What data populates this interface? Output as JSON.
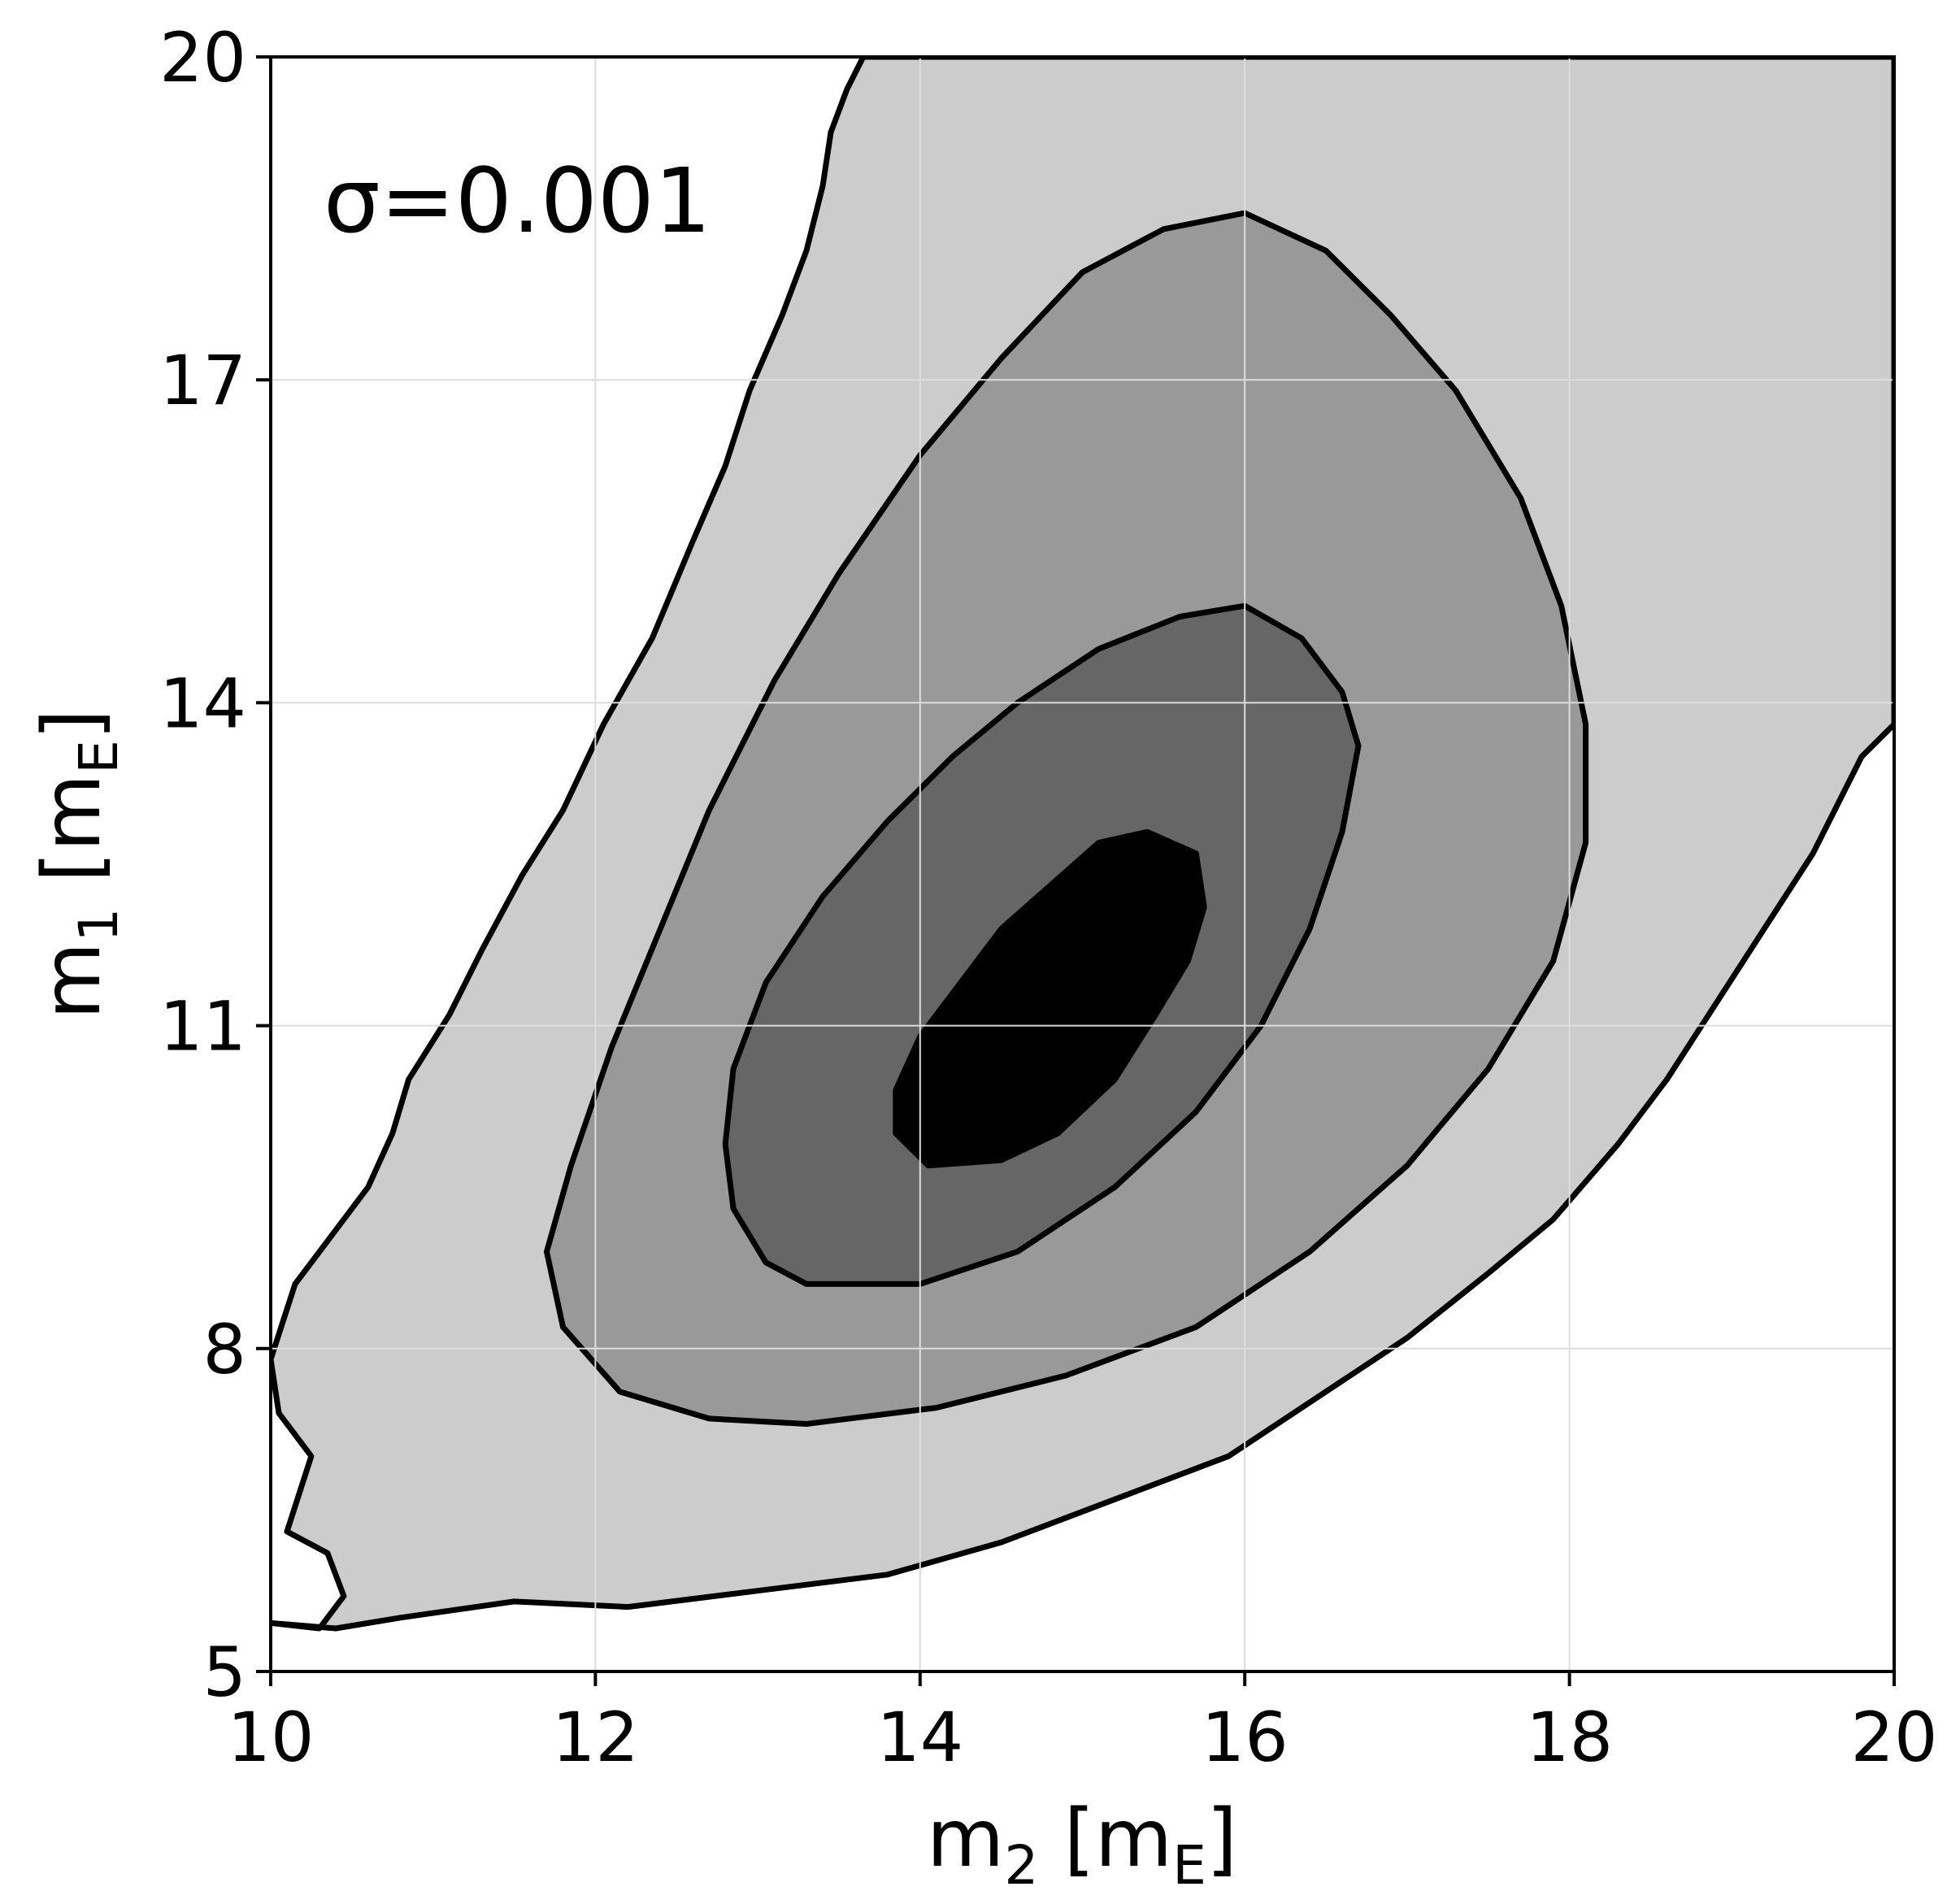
{
  "chart_data": {
    "type": "contour",
    "annotation": "σ=0.001",
    "xlabel": {
      "base": "m",
      "sub": "2",
      "unit_open": " [m",
      "unit_sub": "E",
      "unit_close": "]"
    },
    "ylabel": {
      "base": "m",
      "sub": "1",
      "unit_open": " [m",
      "unit_sub": "E",
      "unit_close": "]"
    },
    "xlim": [
      10,
      20
    ],
    "ylim": [
      5,
      20
    ],
    "xticks": [
      10,
      12,
      14,
      16,
      18,
      20
    ],
    "yticks": [
      5,
      8,
      11,
      14,
      17,
      20
    ],
    "grid": true,
    "colors": {
      "level_outer": "#cccccc",
      "level_2": "#999999",
      "level_3": "#666666",
      "level_inner": "#000000",
      "grid": "#dddddd",
      "outline": "#000000"
    },
    "levels": [
      {
        "name": "outer",
        "fill": "#cccccc",
        "points": [
          [
            10.0,
            5.45
          ],
          [
            10.3,
            5.4
          ],
          [
            10.45,
            5.7
          ],
          [
            10.35,
            6.1
          ],
          [
            10.1,
            6.3
          ],
          [
            10.25,
            7.0
          ],
          [
            10.05,
            7.4
          ],
          [
            10.0,
            7.9
          ],
          [
            10.15,
            8.6
          ],
          [
            10.4,
            9.1
          ],
          [
            10.6,
            9.5
          ],
          [
            10.75,
            10.0
          ],
          [
            10.85,
            10.5
          ],
          [
            11.1,
            11.1
          ],
          [
            11.3,
            11.7
          ],
          [
            11.55,
            12.4
          ],
          [
            11.8,
            13.0
          ],
          [
            12.05,
            13.8
          ],
          [
            12.35,
            14.6
          ],
          [
            12.6,
            15.5
          ],
          [
            12.8,
            16.2
          ],
          [
            12.95,
            16.9
          ],
          [
            13.15,
            17.6
          ],
          [
            13.3,
            18.2
          ],
          [
            13.4,
            18.8
          ],
          [
            13.45,
            19.3
          ],
          [
            13.55,
            19.7
          ],
          [
            13.65,
            20.0
          ],
          [
            20.0,
            20.0
          ],
          [
            20.0,
            13.8
          ],
          [
            19.8,
            13.5
          ],
          [
            19.5,
            12.6
          ],
          [
            19.2,
            11.9
          ],
          [
            18.9,
            11.2
          ],
          [
            18.6,
            10.5
          ],
          [
            18.3,
            9.9
          ],
          [
            17.9,
            9.2
          ],
          [
            17.5,
            8.7
          ],
          [
            17.0,
            8.1
          ],
          [
            16.5,
            7.6
          ],
          [
            15.9,
            7.0
          ],
          [
            15.2,
            6.6
          ],
          [
            14.5,
            6.2
          ],
          [
            13.8,
            5.9
          ],
          [
            13.0,
            5.75
          ],
          [
            12.2,
            5.6
          ],
          [
            11.5,
            5.65
          ],
          [
            10.8,
            5.5
          ],
          [
            10.4,
            5.4
          ],
          [
            10.0,
            5.45
          ]
        ]
      },
      {
        "name": "middle",
        "fill": "#999999",
        "points": [
          [
            12.15,
            7.6
          ],
          [
            12.7,
            7.35
          ],
          [
            13.3,
            7.3
          ],
          [
            14.1,
            7.45
          ],
          [
            14.9,
            7.75
          ],
          [
            15.7,
            8.2
          ],
          [
            16.4,
            8.9
          ],
          [
            17.0,
            9.7
          ],
          [
            17.5,
            10.6
          ],
          [
            17.9,
            11.6
          ],
          [
            18.1,
            12.7
          ],
          [
            18.1,
            13.8
          ],
          [
            17.95,
            14.9
          ],
          [
            17.7,
            15.9
          ],
          [
            17.3,
            16.9
          ],
          [
            16.9,
            17.6
          ],
          [
            16.5,
            18.2
          ],
          [
            16.0,
            18.55
          ],
          [
            15.5,
            18.4
          ],
          [
            15.0,
            18.0
          ],
          [
            14.5,
            17.2
          ],
          [
            14.0,
            16.3
          ],
          [
            13.5,
            15.2
          ],
          [
            13.1,
            14.2
          ],
          [
            12.7,
            13.0
          ],
          [
            12.4,
            11.9
          ],
          [
            12.1,
            10.8
          ],
          [
            11.85,
            9.7
          ],
          [
            11.7,
            8.9
          ],
          [
            11.8,
            8.2
          ],
          [
            12.15,
            7.6
          ]
        ]
      },
      {
        "name": "inner",
        "fill": "#666666",
        "points": [
          [
            13.3,
            8.6
          ],
          [
            14.0,
            8.6
          ],
          [
            14.6,
            8.9
          ],
          [
            15.2,
            9.5
          ],
          [
            15.7,
            10.2
          ],
          [
            16.1,
            11.0
          ],
          [
            16.4,
            11.9
          ],
          [
            16.6,
            12.8
          ],
          [
            16.7,
            13.6
          ],
          [
            16.6,
            14.1
          ],
          [
            16.35,
            14.6
          ],
          [
            16.0,
            14.9
          ],
          [
            15.6,
            14.8
          ],
          [
            15.1,
            14.5
          ],
          [
            14.6,
            14.0
          ],
          [
            14.2,
            13.5
          ],
          [
            13.8,
            12.9
          ],
          [
            13.4,
            12.2
          ],
          [
            13.05,
            11.4
          ],
          [
            12.85,
            10.6
          ],
          [
            12.8,
            9.9
          ],
          [
            12.85,
            9.3
          ],
          [
            13.05,
            8.8
          ],
          [
            13.3,
            8.6
          ]
        ]
      },
      {
        "name": "core",
        "fill": "#000000",
        "points": [
          [
            14.05,
            9.7
          ],
          [
            14.5,
            9.75
          ],
          [
            14.85,
            10.0
          ],
          [
            15.2,
            10.5
          ],
          [
            15.45,
            11.1
          ],
          [
            15.65,
            11.6
          ],
          [
            15.75,
            12.1
          ],
          [
            15.7,
            12.6
          ],
          [
            15.4,
            12.8
          ],
          [
            15.1,
            12.7
          ],
          [
            14.8,
            12.3
          ],
          [
            14.5,
            11.9
          ],
          [
            14.25,
            11.4
          ],
          [
            14.0,
            10.9
          ],
          [
            13.85,
            10.4
          ],
          [
            13.85,
            10.0
          ],
          [
            14.05,
            9.7
          ]
        ]
      }
    ]
  }
}
